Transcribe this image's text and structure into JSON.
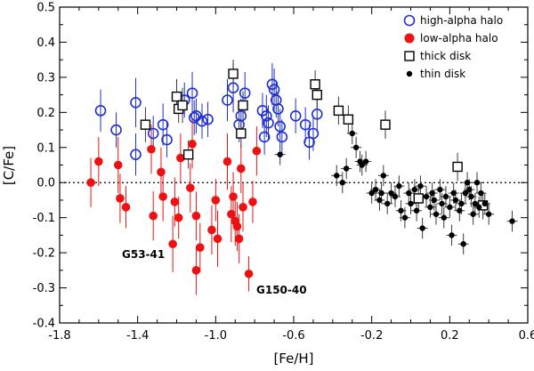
{
  "chart_data": {
    "type": "scatter",
    "title": "",
    "xlabel": "[Fe/H]",
    "ylabel": "[C/Fe]",
    "xlim": [
      -1.8,
      0.6
    ],
    "ylim": [
      -0.4,
      0.5
    ],
    "xticks": [
      "-1.8",
      "-1.4",
      "-1.0",
      "-0.6",
      "-0.2",
      "0.2",
      "0.6"
    ],
    "xtick_values": [
      -1.8,
      -1.4,
      -1.0,
      -0.6,
      -0.2,
      0.2,
      0.6
    ],
    "yticks": [
      "-0.4",
      "-0.3",
      "-0.2",
      "-0.1",
      "0.0",
      "0.1",
      "0.2",
      "0.3",
      "0.4",
      "0.5"
    ],
    "ytick_values": [
      -0.4,
      -0.3,
      -0.2,
      -0.1,
      0.0,
      0.1,
      0.2,
      0.3,
      0.4,
      0.5
    ],
    "reference_line": {
      "y": 0.0,
      "style": "dotted"
    },
    "legend_position": "top-right",
    "colors": {
      "high_alpha": "#1f2fd0",
      "low_alpha": "#ee1111",
      "disk": "#000000",
      "error_thin": "#3a3a3a"
    },
    "annotations": [
      {
        "text": "G53-41",
        "x": -1.5,
        "y": -0.225
      },
      {
        "text": "G150-40",
        "x": -0.81,
        "y": -0.305
      }
    ],
    "series": [
      {
        "name": "high-alpha halo",
        "marker": "open-circle",
        "color": "#1f2fd0",
        "points": [
          {
            "x": -1.59,
            "y": 0.205,
            "e": 0.06
          },
          {
            "x": -1.51,
            "y": 0.15,
            "e": 0.05
          },
          {
            "x": -1.41,
            "y": 0.228,
            "e": 0.07
          },
          {
            "x": -1.41,
            "y": 0.08,
            "e": 0.06
          },
          {
            "x": -1.32,
            "y": 0.14,
            "e": 0.05
          },
          {
            "x": -1.27,
            "y": 0.165,
            "e": 0.06
          },
          {
            "x": -1.25,
            "y": 0.122,
            "e": 0.05
          },
          {
            "x": -1.16,
            "y": 0.235,
            "e": 0.05
          },
          {
            "x": -1.12,
            "y": 0.255,
            "e": 0.06
          },
          {
            "x": -1.11,
            "y": 0.185,
            "e": 0.05
          },
          {
            "x": -1.1,
            "y": 0.19,
            "e": 0.05
          },
          {
            "x": -1.07,
            "y": 0.175,
            "e": 0.05
          },
          {
            "x": -1.04,
            "y": 0.18,
            "e": 0.05
          },
          {
            "x": -0.94,
            "y": 0.235,
            "e": 0.06
          },
          {
            "x": -0.91,
            "y": 0.27,
            "e": 0.07
          },
          {
            "x": -0.88,
            "y": 0.165,
            "e": 0.05
          },
          {
            "x": -0.87,
            "y": 0.19,
            "e": 0.05
          },
          {
            "x": -0.85,
            "y": 0.255,
            "e": 0.06
          },
          {
            "x": -0.76,
            "y": 0.205,
            "e": 0.05
          },
          {
            "x": -0.75,
            "y": 0.13,
            "e": 0.05
          },
          {
            "x": -0.74,
            "y": 0.19,
            "e": 0.06
          },
          {
            "x": -0.73,
            "y": 0.17,
            "e": 0.05
          },
          {
            "x": -0.71,
            "y": 0.28,
            "e": 0.06
          },
          {
            "x": -0.7,
            "y": 0.265,
            "e": 0.06
          },
          {
            "x": -0.69,
            "y": 0.235,
            "e": 0.05
          },
          {
            "x": -0.68,
            "y": 0.21,
            "e": 0.05
          },
          {
            "x": -0.67,
            "y": 0.16,
            "e": 0.05
          },
          {
            "x": -0.66,
            "y": 0.13,
            "e": 0.05
          },
          {
            "x": -0.59,
            "y": 0.19,
            "e": 0.05
          },
          {
            "x": -0.54,
            "y": 0.165,
            "e": 0.05
          },
          {
            "x": -0.52,
            "y": 0.115,
            "e": 0.05
          },
          {
            "x": -0.5,
            "y": 0.14,
            "e": 0.05
          },
          {
            "x": -0.48,
            "y": 0.195,
            "e": 0.05
          }
        ]
      },
      {
        "name": "low-alpha halo",
        "marker": "filled-circle",
        "color": "#ee1111",
        "points": [
          {
            "x": -1.64,
            "y": 0.0,
            "e": 0.07
          },
          {
            "x": -1.6,
            "y": 0.06,
            "e": 0.07
          },
          {
            "x": -1.5,
            "y": 0.05,
            "e": 0.08
          },
          {
            "x": -1.49,
            "y": -0.045,
            "e": 0.07
          },
          {
            "x": -1.46,
            "y": -0.07,
            "e": 0.06
          },
          {
            "x": -1.33,
            "y": 0.095,
            "e": 0.07
          },
          {
            "x": -1.32,
            "y": -0.095,
            "e": 0.07
          },
          {
            "x": -1.28,
            "y": 0.03,
            "e": 0.07
          },
          {
            "x": -1.27,
            "y": -0.04,
            "e": 0.07
          },
          {
            "x": -1.22,
            "y": -0.175,
            "e": 0.08
          },
          {
            "x": -1.21,
            "y": -0.055,
            "e": 0.07
          },
          {
            "x": -1.19,
            "y": -0.1,
            "e": 0.06
          },
          {
            "x": -1.18,
            "y": 0.07,
            "e": 0.07
          },
          {
            "x": -1.13,
            "y": -0.015,
            "e": 0.07
          },
          {
            "x": -1.12,
            "y": 0.11,
            "e": 0.07
          },
          {
            "x": -1.1,
            "y": -0.095,
            "e": 0.07
          },
          {
            "x": -1.1,
            "y": -0.25,
            "e": 0.07
          },
          {
            "x": -1.08,
            "y": -0.185,
            "e": 0.07
          },
          {
            "x": -1.02,
            "y": -0.135,
            "e": 0.07
          },
          {
            "x": -1.0,
            "y": -0.05,
            "e": 0.06
          },
          {
            "x": -0.99,
            "y": -0.16,
            "e": 0.08
          },
          {
            "x": -0.94,
            "y": 0.06,
            "e": 0.08
          },
          {
            "x": -0.92,
            "y": -0.09,
            "e": 0.08
          },
          {
            "x": -0.91,
            "y": -0.04,
            "e": 0.07
          },
          {
            "x": -0.9,
            "y": -0.11,
            "e": 0.07
          },
          {
            "x": -0.89,
            "y": -0.125,
            "e": 0.07
          },
          {
            "x": -0.88,
            "y": -0.16,
            "e": 0.07
          },
          {
            "x": -0.87,
            "y": 0.04,
            "e": 0.07
          },
          {
            "x": -0.86,
            "y": -0.07,
            "e": 0.07
          },
          {
            "x": -0.83,
            "y": -0.26,
            "e": 0.05
          },
          {
            "x": -0.81,
            "y": -0.055,
            "e": 0.06
          },
          {
            "x": -0.79,
            "y": 0.09,
            "e": 0.07
          }
        ]
      },
      {
        "name": "thick disk",
        "marker": "open-square",
        "color": "#000000",
        "points": [
          {
            "x": -1.36,
            "y": 0.165,
            "e": 0.05
          },
          {
            "x": -1.2,
            "y": 0.245,
            "e": 0.05
          },
          {
            "x": -1.19,
            "y": 0.21,
            "e": 0.04
          },
          {
            "x": -1.17,
            "y": 0.22,
            "e": 0.05
          },
          {
            "x": -1.14,
            "y": 0.08,
            "e": 0.04
          },
          {
            "x": -0.91,
            "y": 0.31,
            "e": 0.04
          },
          {
            "x": -0.87,
            "y": 0.14,
            "e": 0.04
          },
          {
            "x": -0.86,
            "y": 0.22,
            "e": 0.04
          },
          {
            "x": -0.49,
            "y": 0.28,
            "e": 0.04
          },
          {
            "x": -0.48,
            "y": 0.25,
            "e": 0.04
          },
          {
            "x": -0.37,
            "y": 0.205,
            "e": 0.04
          },
          {
            "x": -0.32,
            "y": 0.18,
            "e": 0.04
          },
          {
            "x": -0.13,
            "y": 0.165,
            "e": 0.04
          },
          {
            "x": 0.04,
            "y": -0.045,
            "e": 0.04
          },
          {
            "x": 0.24,
            "y": 0.045,
            "e": 0.04
          },
          {
            "x": 0.37,
            "y": -0.065,
            "e": 0.04
          }
        ]
      },
      {
        "name": "thin disk",
        "marker": "filled-dot",
        "color": "#000000",
        "points": [
          {
            "x": -0.67,
            "y": 0.08,
            "e": 0.03
          },
          {
            "x": -0.38,
            "y": 0.02,
            "e": 0.03
          },
          {
            "x": -0.35,
            "y": 0.0,
            "e": 0.03
          },
          {
            "x": -0.33,
            "y": 0.04,
            "e": 0.03
          },
          {
            "x": -0.3,
            "y": 0.14,
            "e": 0.03
          },
          {
            "x": -0.28,
            "y": 0.1,
            "e": 0.03
          },
          {
            "x": -0.26,
            "y": 0.06,
            "e": 0.03
          },
          {
            "x": -0.25,
            "y": 0.05,
            "e": 0.03
          },
          {
            "x": -0.23,
            "y": 0.06,
            "e": 0.03
          },
          {
            "x": -0.2,
            "y": -0.03,
            "e": 0.03
          },
          {
            "x": -0.18,
            "y": -0.02,
            "e": 0.03
          },
          {
            "x": -0.16,
            "y": -0.05,
            "e": 0.03
          },
          {
            "x": -0.15,
            "y": -0.03,
            "e": 0.03
          },
          {
            "x": -0.14,
            "y": 0.02,
            "e": 0.03
          },
          {
            "x": -0.12,
            "y": -0.06,
            "e": 0.03
          },
          {
            "x": -0.1,
            "y": -0.03,
            "e": 0.03
          },
          {
            "x": -0.08,
            "y": -0.04,
            "e": 0.03
          },
          {
            "x": -0.06,
            "y": -0.01,
            "e": 0.03
          },
          {
            "x": -0.05,
            "y": -0.08,
            "e": 0.03
          },
          {
            "x": -0.03,
            "y": -0.1,
            "e": 0.03
          },
          {
            "x": -0.01,
            "y": -0.03,
            "e": 0.03
          },
          {
            "x": 0.0,
            "y": -0.06,
            "e": 0.03
          },
          {
            "x": 0.02,
            "y": -0.02,
            "e": 0.03
          },
          {
            "x": 0.03,
            "y": -0.08,
            "e": 0.03
          },
          {
            "x": 0.05,
            "y": -0.01,
            "e": 0.03
          },
          {
            "x": 0.06,
            "y": -0.13,
            "e": 0.03
          },
          {
            "x": 0.08,
            "y": -0.04,
            "e": 0.03
          },
          {
            "x": 0.1,
            "y": -0.07,
            "e": 0.03
          },
          {
            "x": 0.11,
            "y": -0.03,
            "e": 0.03
          },
          {
            "x": 0.12,
            "y": -0.05,
            "e": 0.03
          },
          {
            "x": 0.13,
            "y": -0.09,
            "e": 0.03
          },
          {
            "x": 0.15,
            "y": -0.02,
            "e": 0.03
          },
          {
            "x": 0.16,
            "y": -0.06,
            "e": 0.03
          },
          {
            "x": 0.17,
            "y": -0.1,
            "e": 0.03
          },
          {
            "x": 0.18,
            "y": -0.04,
            "e": 0.03
          },
          {
            "x": 0.2,
            "y": -0.07,
            "e": 0.03
          },
          {
            "x": 0.21,
            "y": -0.15,
            "e": 0.03
          },
          {
            "x": 0.22,
            "y": -0.03,
            "e": 0.03
          },
          {
            "x": 0.23,
            "y": -0.05,
            "e": 0.03
          },
          {
            "x": 0.25,
            "y": -0.08,
            "e": 0.03
          },
          {
            "x": 0.26,
            "y": -0.06,
            "e": 0.03
          },
          {
            "x": 0.27,
            "y": -0.175,
            "e": 0.03
          },
          {
            "x": 0.28,
            "y": -0.03,
            "e": 0.03
          },
          {
            "x": 0.29,
            "y": 0.0,
            "e": 0.03
          },
          {
            "x": 0.3,
            "y": -0.02,
            "e": 0.03
          },
          {
            "x": 0.31,
            "y": -0.04,
            "e": 0.03
          },
          {
            "x": 0.32,
            "y": -0.09,
            "e": 0.03
          },
          {
            "x": 0.33,
            "y": -0.06,
            "e": 0.03
          },
          {
            "x": 0.34,
            "y": 0.0,
            "e": 0.03
          },
          {
            "x": 0.35,
            "y": -0.07,
            "e": 0.03
          },
          {
            "x": 0.36,
            "y": -0.03,
            "e": 0.03
          },
          {
            "x": 0.38,
            "y": -0.06,
            "e": 0.03
          },
          {
            "x": 0.4,
            "y": -0.09,
            "e": 0.03
          },
          {
            "x": 0.52,
            "y": -0.11,
            "e": 0.03
          }
        ]
      }
    ]
  }
}
